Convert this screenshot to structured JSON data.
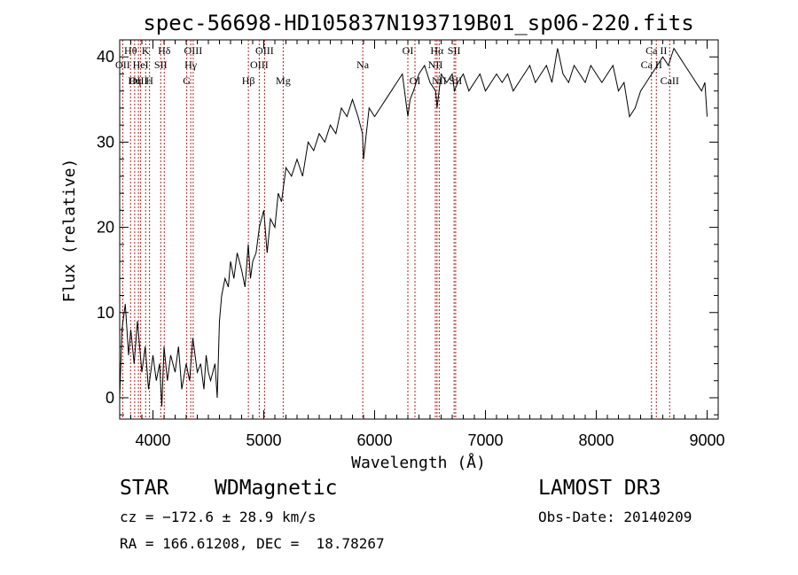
{
  "chart_data": {
    "type": "line",
    "title": "spec-56698-HD105837N193719B01_sp06-220.fits",
    "xlabel": "Wavelength (Å)",
    "ylabel": "Flux (relative)",
    "xlim": [
      3700,
      9100
    ],
    "ylim": [
      -2.5,
      42
    ],
    "xticks": [
      4000,
      5000,
      6000,
      7000,
      8000,
      9000
    ],
    "yticks": [
      0,
      10,
      20,
      30,
      40
    ],
    "grid": false,
    "series": [
      {
        "x": [
          3700,
          3720,
          3750,
          3780,
          3800,
          3830,
          3860,
          3900,
          3930,
          3960,
          4000,
          4030,
          4060,
          4080,
          4100,
          4130,
          4160,
          4200,
          4230,
          4260,
          4300,
          4330,
          4360,
          4400,
          4430,
          4460,
          4480,
          4500,
          4520,
          4540,
          4560,
          4580,
          4600,
          4620,
          4650,
          4680,
          4700,
          4730,
          4760,
          4800,
          4830,
          4860,
          4880,
          4900,
          4930,
          4960,
          5000,
          5030,
          5060,
          5100,
          5130,
          5160,
          5200,
          5250,
          5300,
          5350,
          5400,
          5450,
          5500,
          5550,
          5600,
          5650,
          5700,
          5750,
          5800,
          5850,
          5890,
          5900,
          5950,
          6000,
          6050,
          6100,
          6150,
          6200,
          6250,
          6300,
          6320,
          6350,
          6400,
          6450,
          6500,
          6550,
          6563,
          6600,
          6650,
          6700,
          6720,
          6750,
          6800,
          6850,
          6900,
          6950,
          7000,
          7050,
          7100,
          7150,
          7200,
          7250,
          7300,
          7350,
          7400,
          7450,
          7500,
          7550,
          7600,
          7650,
          7700,
          7750,
          7800,
          7850,
          7900,
          7950,
          8000,
          8050,
          8100,
          8150,
          8200,
          8250,
          8300,
          8350,
          8400,
          8450,
          8500,
          8550,
          8600,
          8650,
          8700,
          8750,
          8800,
          8850,
          8900,
          8950,
          8980,
          9000
        ],
        "y": [
          0,
          8,
          11,
          5,
          8,
          4,
          9,
          3,
          6,
          1,
          5,
          2,
          4,
          -1,
          6,
          2,
          5,
          3,
          6,
          1,
          4,
          2,
          7,
          3,
          4,
          1,
          5,
          3,
          2,
          3,
          4,
          0,
          9,
          12,
          14,
          13,
          16,
          14,
          17,
          15,
          13,
          18,
          14,
          16,
          17,
          20,
          22,
          17,
          21,
          20,
          24,
          23,
          27,
          26,
          28,
          26,
          30,
          29,
          31,
          30,
          32,
          31,
          34,
          33,
          35,
          33,
          31,
          28,
          34,
          33,
          34,
          35,
          36,
          37,
          38,
          33,
          35,
          36,
          38,
          39,
          37,
          36,
          34,
          38,
          37,
          38,
          36,
          37,
          38,
          36,
          37,
          38,
          36,
          37,
          38,
          37,
          38,
          36,
          37,
          38,
          39,
          37,
          38,
          39,
          37,
          41,
          38,
          37,
          39,
          38,
          37,
          39,
          38,
          37,
          38,
          39,
          36,
          37,
          33,
          34,
          36,
          37,
          38,
          39,
          40,
          39,
          41,
          40,
          39,
          38,
          37,
          36,
          37,
          33
        ]
      }
    ],
    "lines": [
      {
        "label": "Hθ",
        "x": 3798,
        "row": 1
      },
      {
        "label": "OII",
        "x": 3727,
        "row": 2
      },
      {
        "label": "OIII",
        "x": 3869,
        "row": 3
      },
      {
        "label": "K",
        "x": 3934,
        "row": 1
      },
      {
        "label": "HeI",
        "x": 3889,
        "row": 2
      },
      {
        "label": "Hη",
        "x": 3835,
        "row": 3
      },
      {
        "label": "SII",
        "x": 4070,
        "row": 2
      },
      {
        "label": "H",
        "x": 3969,
        "row": 3
      },
      {
        "label": "Hδ",
        "x": 4102,
        "row": 1
      },
      {
        "label": "OIII",
        "x": 4363,
        "row": 1
      },
      {
        "label": "Hγ",
        "x": 4341,
        "row": 2
      },
      {
        "label": "G",
        "x": 4305,
        "row": 3
      },
      {
        "label": "Hβ",
        "x": 4861,
        "row": 3
      },
      {
        "label": "OIII",
        "x": 4959,
        "row": 2
      },
      {
        "label": "OIII",
        "x": 5007,
        "row": 1
      },
      {
        "label": "Mg",
        "x": 5175,
        "row": 3
      },
      {
        "label": "Na",
        "x": 5893,
        "row": 2
      },
      {
        "label": "OI",
        "x": 6300,
        "row": 1
      },
      {
        "label": "OI",
        "x": 6364,
        "row": 3
      },
      {
        "label": "Hα",
        "x": 6563,
        "row": 1
      },
      {
        "label": "NII",
        "x": 6548,
        "row": 2
      },
      {
        "label": "NII",
        "x": 6583,
        "row": 3
      },
      {
        "label": "SII",
        "x": 6717,
        "row": 1
      },
      {
        "label": "SII",
        "x": 6731,
        "row": 3
      },
      {
        "label": "Ca II",
        "x": 8498,
        "row": 2
      },
      {
        "label": "Ca II",
        "x": 8542,
        "row": 1
      },
      {
        "label": "CaII",
        "x": 8662,
        "row": 3
      }
    ]
  },
  "info": {
    "class_label": "STAR",
    "subclass_label": "WDMagnetic",
    "survey": "LAMOST DR3",
    "cz_line": "cz = −172.6 ± 28.9 km/s",
    "obs_date": "Obs-Date: 20140209",
    "radec_line": "RA = 166.61208, DEC =  18.78267"
  },
  "colors": {
    "line": "#000000",
    "marker": "#b22222"
  }
}
